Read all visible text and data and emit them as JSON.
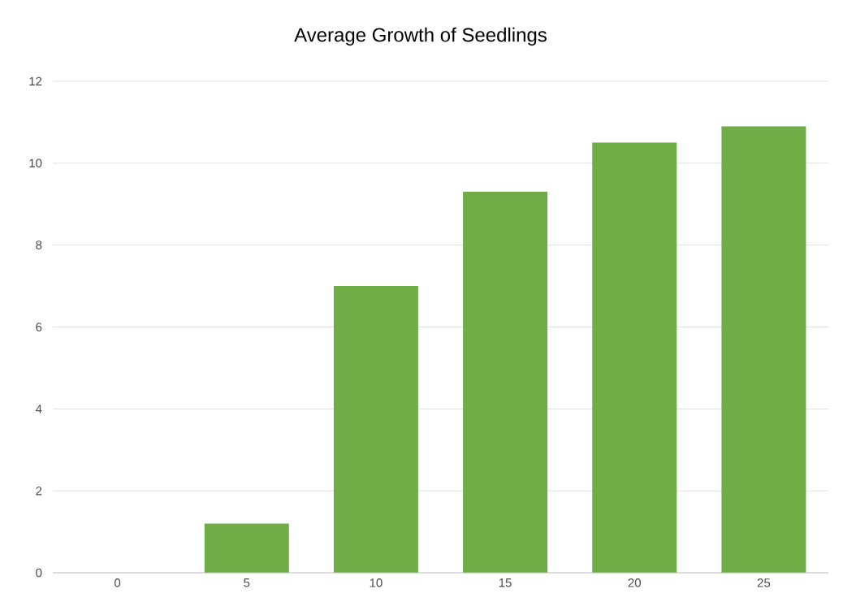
{
  "chart_data": {
    "type": "bar",
    "title": "Average Growth of Seedlings",
    "categories": [
      "0",
      "5",
      "10",
      "15",
      "20",
      "25"
    ],
    "values": [
      0,
      1.2,
      7,
      9.3,
      10.5,
      10.9
    ],
    "color": "#70ad47",
    "ylim": [
      0,
      12
    ],
    "yticks": [
      0,
      2,
      4,
      6,
      8,
      10,
      12
    ],
    "grid": "y"
  }
}
